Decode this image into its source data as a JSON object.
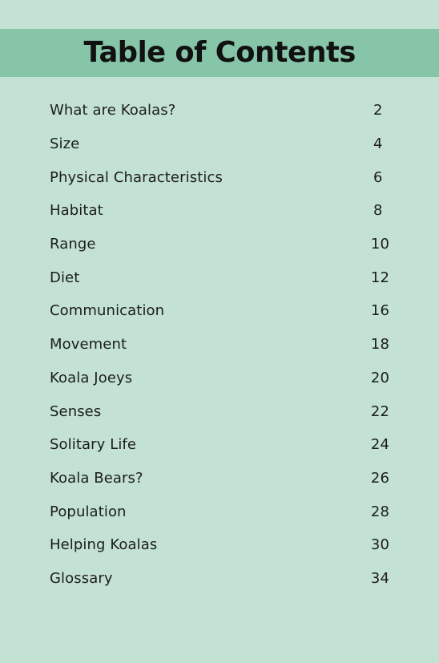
{
  "header": {
    "title": "Table of Contents"
  },
  "toc": [
    {
      "label": "What are Koalas?",
      "page": "2"
    },
    {
      "label": "Size",
      "page": "4"
    },
    {
      "label": "Physical Characteristics",
      "page": "6"
    },
    {
      "label": "Habitat",
      "page": "8"
    },
    {
      "label": "Range",
      "page": "10"
    },
    {
      "label": "Diet",
      "page": "12"
    },
    {
      "label": "Communication",
      "page": "16"
    },
    {
      "label": "Movement",
      "page": "18"
    },
    {
      "label": "Koala Joeys",
      "page": "20"
    },
    {
      "label": "Senses",
      "page": "22"
    },
    {
      "label": "Solitary Life",
      "page": "24"
    },
    {
      "label": "Koala Bears?",
      "page": "26"
    },
    {
      "label": "Population",
      "page": "28"
    },
    {
      "label": "Helping Koalas",
      "page": "30"
    },
    {
      "label": "Glossary",
      "page": "34"
    }
  ],
  "colors": {
    "background": "#c3e2d3",
    "title_band": "#86c5a8",
    "text": "#1d1d1d"
  }
}
